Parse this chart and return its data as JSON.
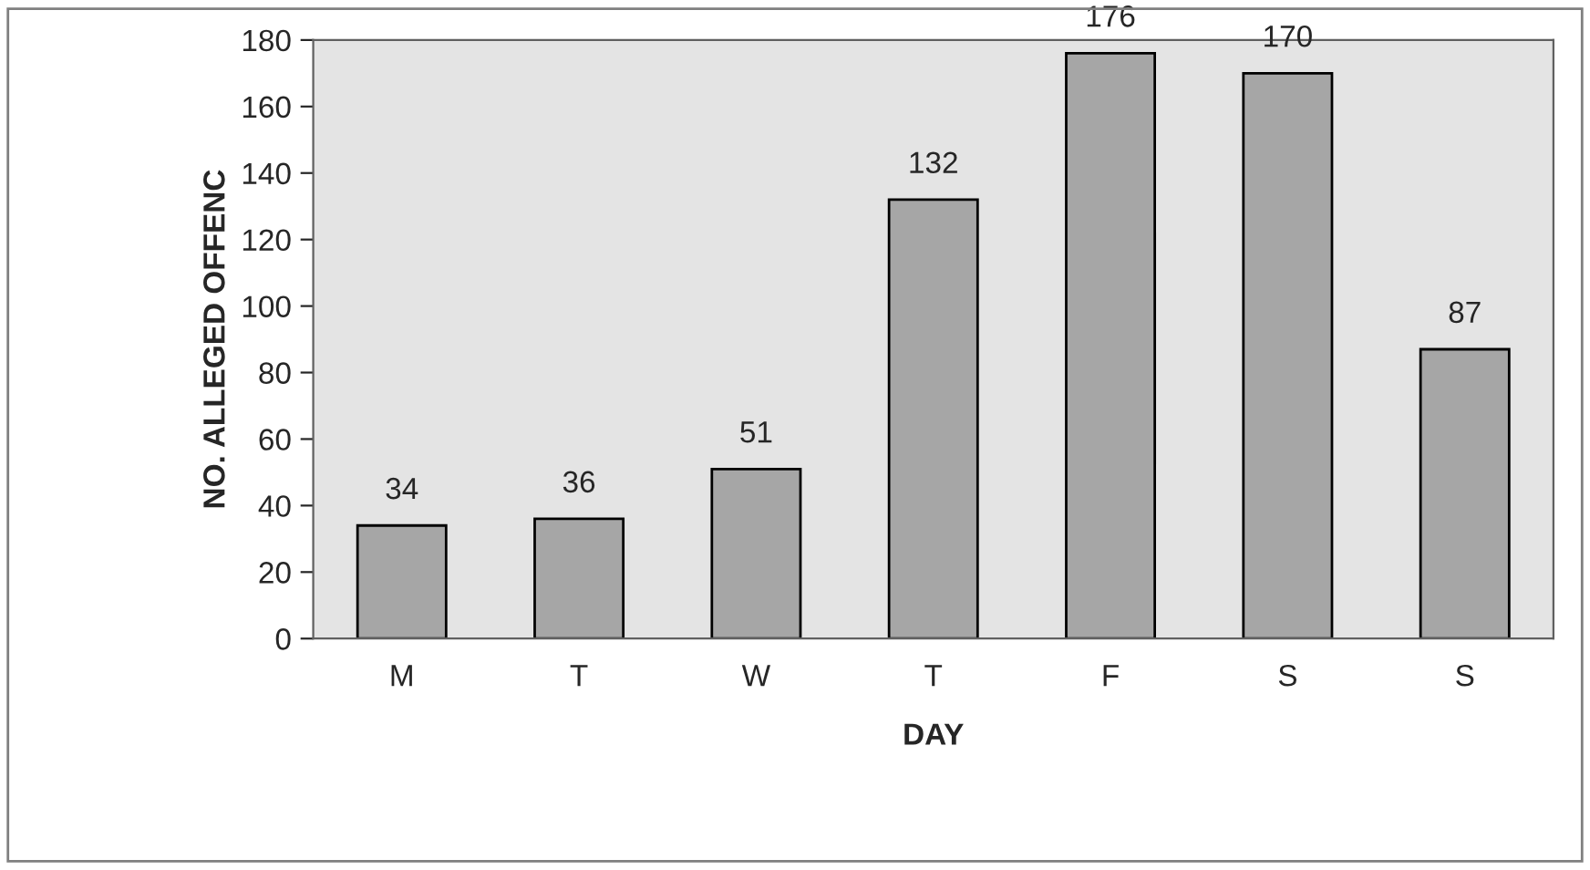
{
  "chart_data": {
    "type": "bar",
    "xlabel": "DAY",
    "ylabel": "NO. ALLEGED OFFENC",
    "categories": [
      "M",
      "T",
      "W",
      "T",
      "F",
      "S",
      "S"
    ],
    "values": [
      34,
      36,
      51,
      132,
      176,
      170,
      87
    ],
    "color": "#a6a6a6",
    "ylim": [
      0,
      180
    ],
    "yticks": [
      0,
      20,
      40,
      60,
      80,
      100,
      120,
      140,
      160,
      180
    ],
    "data_labels": true,
    "grid": false,
    "legend": false
  }
}
